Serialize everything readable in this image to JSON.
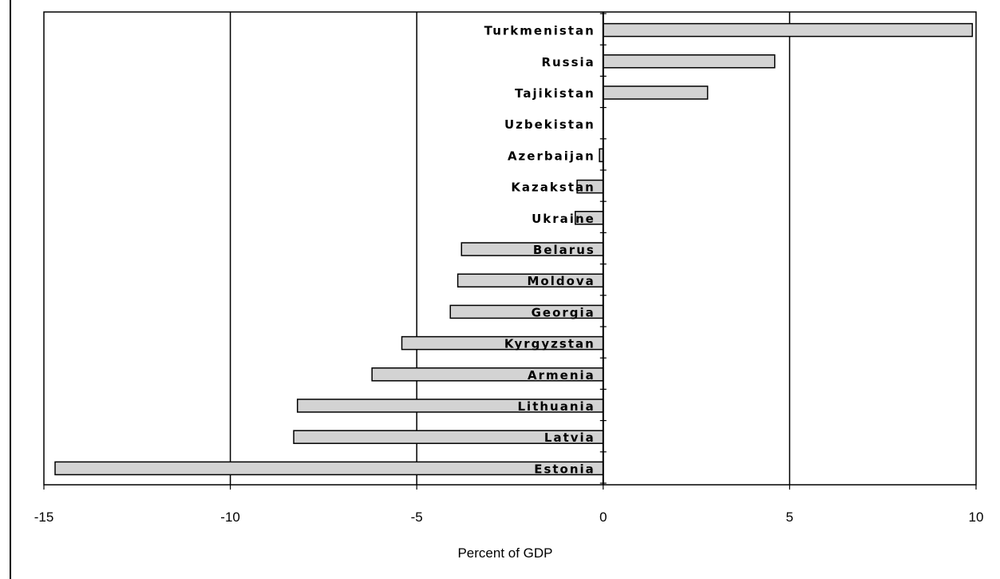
{
  "chart_data": {
    "type": "bar",
    "orientation": "horizontal",
    "title": "",
    "xlabel": "Percent of GDP",
    "ylabel": "",
    "xlim": [
      -15,
      10
    ],
    "xticks": [
      -15,
      -10,
      -5,
      0,
      5,
      10
    ],
    "xtick_labels": [
      "-15",
      "-10",
      "-5",
      "0",
      "5",
      "10"
    ],
    "grid": "vertical lines at major x ticks",
    "legend": "none",
    "bar_color": "#d3d3d3",
    "bar_edge_color": "#000000",
    "categories": [
      "Turkmenistan",
      "Russia",
      "Tajikistan",
      "Uzbekistan",
      "Azerbaijan",
      "Kazakstan",
      "Ukraine",
      "Belarus",
      "Moldova",
      "Georgia",
      "Kyrgyzstan",
      "Armenia",
      "Lithuania",
      "Latvia",
      "Estonia"
    ],
    "values": [
      9.9,
      4.6,
      2.8,
      0.0,
      -0.1,
      -0.7,
      -0.75,
      -3.8,
      -3.9,
      -4.1,
      -5.4,
      -6.2,
      -8.2,
      -8.3,
      -14.7
    ]
  }
}
